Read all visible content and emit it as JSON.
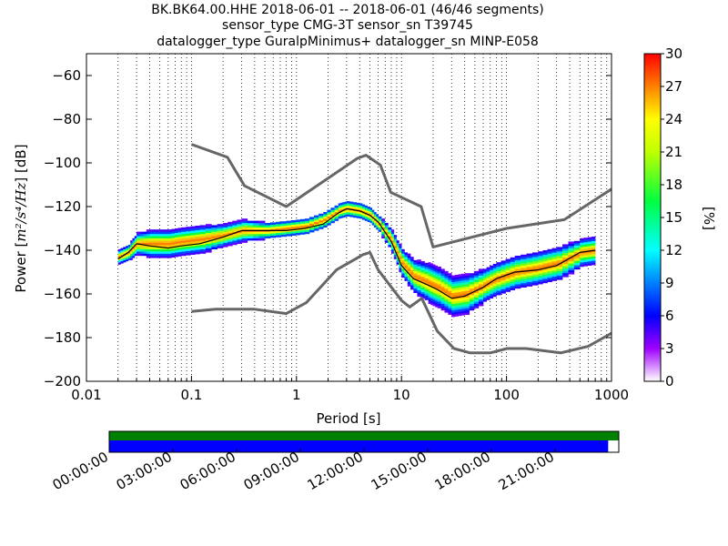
{
  "chart_data": {
    "type": "heatmap",
    "title_lines": [
      "BK.BK64.00.HHE   2018-06-01 -- 2018-06-01  (46/46 segments)",
      "sensor_type CMG-3T sensor_sn T39745",
      "datalogger_type GuralpMinimus+ datalogger_sn MINP-E058"
    ],
    "xlabel": "Period [s]",
    "ylabel_text": "Power [",
    "ylabel_math": "m²/s⁴/Hz",
    "ylabel_tail": "] [dB]",
    "x_scale": "log",
    "xlim": [
      0.01,
      1000
    ],
    "ylim": [
      -200,
      -50
    ],
    "x_ticks": [
      {
        "value": 0.01,
        "label": "0.01"
      },
      {
        "value": 0.1,
        "label": "0.1"
      },
      {
        "value": 1,
        "label": "1"
      },
      {
        "value": 10,
        "label": "10"
      },
      {
        "value": 100,
        "label": "100"
      },
      {
        "value": 1000,
        "label": "1000"
      }
    ],
    "y_ticks": [
      {
        "value": -60,
        "label": "−60"
      },
      {
        "value": -80,
        "label": "−80"
      },
      {
        "value": -100,
        "label": "−100"
      },
      {
        "value": -120,
        "label": "−120"
      },
      {
        "value": -140,
        "label": "−140"
      },
      {
        "value": -160,
        "label": "−160"
      },
      {
        "value": -180,
        "label": "−180"
      },
      {
        "value": -200,
        "label": "−200"
      }
    ],
    "grid": "dotted vertical at log decades",
    "colorbar": {
      "label": "[%]",
      "min": 0,
      "max": 30,
      "ticks": [
        {
          "value": 0,
          "label": "0"
        },
        {
          "value": 3,
          "label": "3"
        },
        {
          "value": 6,
          "label": "6"
        },
        {
          "value": 9,
          "label": "9"
        },
        {
          "value": 12,
          "label": "12"
        },
        {
          "value": 15,
          "label": "15"
        },
        {
          "value": 18,
          "label": "18"
        },
        {
          "value": 21,
          "label": "21"
        },
        {
          "value": 24,
          "label": "24"
        },
        {
          "value": 27,
          "label": "27"
        },
        {
          "value": 30,
          "label": "30"
        }
      ]
    },
    "nhnm": [
      [
        0.1,
        -168
      ],
      [
        0.17,
        -167
      ],
      [
        0.4,
        -167
      ],
      [
        0.8,
        -169
      ],
      [
        1.24,
        -164
      ],
      [
        2.4,
        -149
      ],
      [
        4.3,
        -142
      ],
      [
        5,
        -141
      ],
      [
        6,
        -149
      ],
      [
        10,
        -163
      ],
      [
        12,
        -166
      ],
      [
        15.6,
        -162
      ],
      [
        21.9,
        -177
      ],
      [
        31.6,
        -185
      ],
      [
        45,
        -187
      ],
      [
        70,
        -187
      ],
      [
        101,
        -185
      ],
      [
        154,
        -185
      ],
      [
        328,
        -187
      ],
      [
        600,
        -184
      ],
      [
        1000,
        -178
      ]
    ],
    "nlnm": [
      [
        0.1,
        -91.5
      ],
      [
        0.22,
        -97.4
      ],
      [
        0.32,
        -110.5
      ],
      [
        0.8,
        -120
      ],
      [
        3.8,
        -97.9
      ],
      [
        4.6,
        -96.5
      ],
      [
        6.3,
        -101
      ],
      [
        7.9,
        -113.5
      ],
      [
        15.4,
        -120
      ],
      [
        20,
        -138.5
      ],
      [
        100,
        -130
      ],
      [
        354.8,
        -126
      ],
      [
        1000,
        -112
      ]
    ],
    "mode_curve": [
      [
        0.02,
        -144
      ],
      [
        0.025,
        -141
      ],
      [
        0.03,
        -137
      ],
      [
        0.04,
        -138
      ],
      [
        0.06,
        -139
      ],
      [
        0.08,
        -138
      ],
      [
        0.12,
        -137
      ],
      [
        0.2,
        -134
      ],
      [
        0.3,
        -131
      ],
      [
        0.5,
        -131
      ],
      [
        0.8,
        -131
      ],
      [
        1.2,
        -130
      ],
      [
        1.8,
        -128
      ],
      [
        2.5,
        -123
      ],
      [
        3,
        -121
      ],
      [
        4,
        -122
      ],
      [
        5,
        -124
      ],
      [
        6,
        -127
      ],
      [
        8,
        -136
      ],
      [
        10,
        -147
      ],
      [
        13,
        -153
      ],
      [
        18,
        -156
      ],
      [
        22,
        -158
      ],
      [
        30,
        -162
      ],
      [
        40,
        -161
      ],
      [
        60,
        -157
      ],
      [
        80,
        -153
      ],
      [
        120,
        -150
      ],
      [
        200,
        -149
      ],
      [
        300,
        -147
      ],
      [
        500,
        -141
      ],
      [
        700,
        -140
      ]
    ],
    "density_band": [
      {
        "x": 0.02,
        "center": -143,
        "spread": 2.5
      },
      {
        "x": 0.025,
        "center": -141,
        "spread": 3
      },
      {
        "x": 0.03,
        "center": -137,
        "spread": 4
      },
      {
        "x": 0.04,
        "center": -137,
        "spread": 5
      },
      {
        "x": 0.06,
        "center": -137,
        "spread": 5
      },
      {
        "x": 0.08,
        "center": -136,
        "spread": 5
      },
      {
        "x": 0.12,
        "center": -135,
        "spread": 5
      },
      {
        "x": 0.2,
        "center": -133,
        "spread": 4
      },
      {
        "x": 0.3,
        "center": -131,
        "spread": 4
      },
      {
        "x": 0.5,
        "center": -131,
        "spread": 3
      },
      {
        "x": 0.8,
        "center": -130,
        "spread": 3
      },
      {
        "x": 1.2,
        "center": -129,
        "spread": 3
      },
      {
        "x": 1.8,
        "center": -126,
        "spread": 3
      },
      {
        "x": 2.5,
        "center": -122,
        "spread": 3
      },
      {
        "x": 3,
        "center": -121,
        "spread": 3
      },
      {
        "x": 4,
        "center": -122,
        "spread": 3
      },
      {
        "x": 5,
        "center": -124,
        "spread": 3
      },
      {
        "x": 6,
        "center": -128,
        "spread": 3
      },
      {
        "x": 8,
        "center": -136,
        "spread": 4
      },
      {
        "x": 10,
        "center": -146,
        "spread": 5
      },
      {
        "x": 13,
        "center": -152,
        "spread": 6
      },
      {
        "x": 18,
        "center": -155,
        "spread": 7
      },
      {
        "x": 22,
        "center": -157,
        "spread": 7
      },
      {
        "x": 30,
        "center": -161,
        "spread": 7
      },
      {
        "x": 40,
        "center": -160,
        "spread": 7
      },
      {
        "x": 60,
        "center": -156,
        "spread": 6
      },
      {
        "x": 80,
        "center": -153,
        "spread": 6
      },
      {
        "x": 120,
        "center": -150,
        "spread": 6
      },
      {
        "x": 200,
        "center": -148,
        "spread": 6
      },
      {
        "x": 300,
        "center": -146,
        "spread": 6
      },
      {
        "x": 500,
        "center": -141,
        "spread": 5
      },
      {
        "x": 700,
        "center": -140,
        "spread": 5
      }
    ],
    "timeline": {
      "tick_labels": [
        "00:00:00",
        "03:00:00",
        "06:00:00",
        "09:00:00",
        "12:00:00",
        "15:00:00",
        "18:00:00",
        "21:00:00"
      ],
      "start_hour": 0,
      "span_hours": 24,
      "top_bar": {
        "color": "#008000",
        "coverage": [
          0,
          24
        ]
      },
      "bottom_bar": {
        "color": "#0000ff",
        "coverage": [
          0,
          23.5
        ]
      }
    },
    "colors": {
      "curve": "#666666",
      "mode": "#000000"
    }
  }
}
